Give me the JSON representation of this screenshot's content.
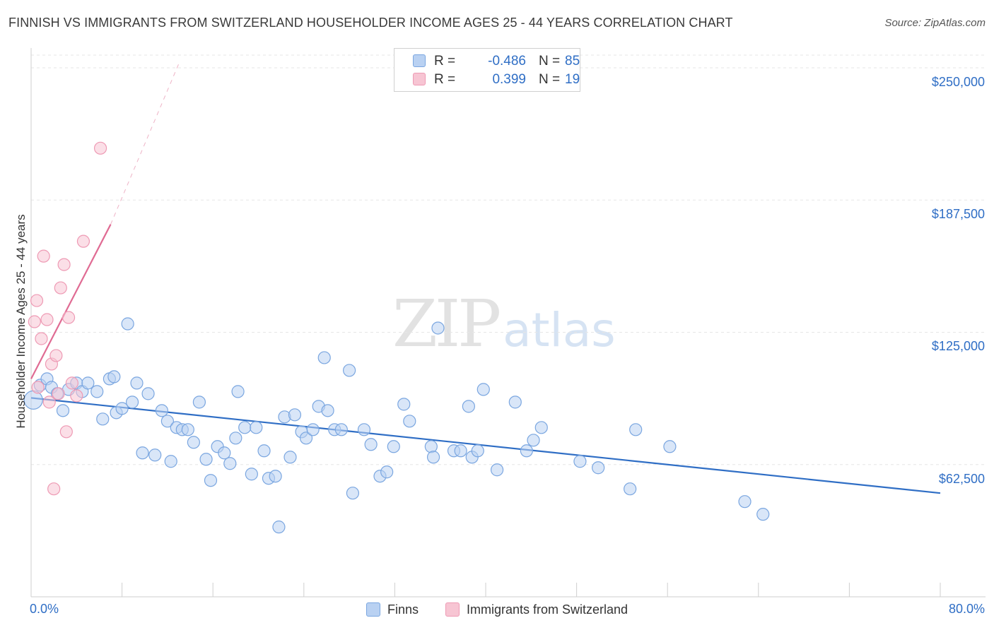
{
  "header": {
    "title": "FINNISH VS IMMIGRANTS FROM SWITZERLAND HOUSEHOLDER INCOME AGES 25 - 44 YEARS CORRELATION CHART",
    "source": "Source: ZipAtlas.com"
  },
  "watermark": {
    "zip": "ZIP",
    "atlas": "atlas"
  },
  "legend": {
    "series": [
      {
        "name": "Finns",
        "r_label": "R =",
        "r_value": "-0.486",
        "n_label": "N =",
        "n_value": "85"
      },
      {
        "name": "Immigrants from Switzerland",
        "r_label": "R =",
        "r_value": "0.399",
        "n_label": "N =",
        "n_value": "19"
      }
    ]
  },
  "colors": {
    "finns_fill": "#b9d1f2",
    "finns_stroke": "#7aa6e0",
    "finns_line": "#2f6ec5",
    "swiss_fill": "#f7c5d3",
    "swiss_stroke": "#ee9ab4",
    "swiss_line": "#e06b93",
    "grid": "#e6e6e6",
    "axis_text": "#2f6ec5"
  },
  "chart_data": {
    "type": "scatter",
    "title": "FINNISH VS IMMIGRANTS FROM SWITZERLAND HOUSEHOLDER INCOME AGES 25 - 44 YEARS CORRELATION CHART",
    "xlabel": "",
    "ylabel": "Householder Income Ages 25 - 44 years",
    "xlim": [
      0,
      80
    ],
    "ylim": [
      0,
      256000
    ],
    "x_tick_labels": [
      "0.0%",
      "80.0%"
    ],
    "y_ticks": [
      {
        "value": 62500,
        "label": "$62,500"
      },
      {
        "value": 125000,
        "label": "$125,000"
      },
      {
        "value": 187500,
        "label": "$187,500"
      },
      {
        "value": 250000,
        "label": "$250,000"
      }
    ],
    "grid": true,
    "legend_position": "top-center",
    "series": [
      {
        "name": "Finns",
        "trend": {
          "x": [
            0,
            80
          ],
          "y": [
            94000,
            49000
          ]
        },
        "points": [
          [
            0.2,
            93000
          ],
          [
            0.8,
            100000
          ],
          [
            1.4,
            103000
          ],
          [
            1.8,
            99000
          ],
          [
            2.3,
            96000
          ],
          [
            2.8,
            88000
          ],
          [
            3.3,
            98000
          ],
          [
            4.0,
            101000
          ],
          [
            4.5,
            97000
          ],
          [
            5.0,
            101000
          ],
          [
            5.8,
            97000
          ],
          [
            6.3,
            84000
          ],
          [
            6.9,
            103000
          ],
          [
            7.3,
            104000
          ],
          [
            7.5,
            87000
          ],
          [
            8.0,
            89000
          ],
          [
            8.5,
            129000
          ],
          [
            8.9,
            92000
          ],
          [
            9.3,
            101000
          ],
          [
            9.8,
            68000
          ],
          [
            10.3,
            96000
          ],
          [
            10.9,
            67000
          ],
          [
            11.5,
            88000
          ],
          [
            12.0,
            83000
          ],
          [
            12.3,
            64000
          ],
          [
            12.8,
            80000
          ],
          [
            13.3,
            79000
          ],
          [
            13.8,
            79000
          ],
          [
            14.3,
            73000
          ],
          [
            14.8,
            92000
          ],
          [
            15.4,
            65000
          ],
          [
            15.8,
            55000
          ],
          [
            16.4,
            71000
          ],
          [
            17.0,
            68000
          ],
          [
            17.5,
            63000
          ],
          [
            18.0,
            75000
          ],
          [
            18.2,
            97000
          ],
          [
            18.8,
            80000
          ],
          [
            19.4,
            58000
          ],
          [
            19.8,
            80000
          ],
          [
            20.5,
            69000
          ],
          [
            20.9,
            56000
          ],
          [
            21.5,
            57000
          ],
          [
            21.8,
            33000
          ],
          [
            22.3,
            85000
          ],
          [
            22.8,
            66000
          ],
          [
            23.2,
            86000
          ],
          [
            23.8,
            78000
          ],
          [
            24.2,
            75000
          ],
          [
            24.8,
            79000
          ],
          [
            25.3,
            90000
          ],
          [
            25.8,
            113000
          ],
          [
            26.1,
            88000
          ],
          [
            26.7,
            79000
          ],
          [
            27.3,
            79000
          ],
          [
            28.0,
            107000
          ],
          [
            28.3,
            49000
          ],
          [
            29.3,
            79000
          ],
          [
            29.9,
            72000
          ],
          [
            30.7,
            57000
          ],
          [
            31.3,
            59000
          ],
          [
            31.9,
            71000
          ],
          [
            32.8,
            91000
          ],
          [
            33.3,
            83000
          ],
          [
            35.2,
            71000
          ],
          [
            35.4,
            66000
          ],
          [
            35.8,
            127000
          ],
          [
            37.2,
            69000
          ],
          [
            37.8,
            69000
          ],
          [
            38.5,
            90000
          ],
          [
            38.8,
            66000
          ],
          [
            39.3,
            69000
          ],
          [
            39.8,
            98000
          ],
          [
            41.0,
            60000
          ],
          [
            42.6,
            92000
          ],
          [
            43.6,
            69000
          ],
          [
            44.2,
            74000
          ],
          [
            44.9,
            80000
          ],
          [
            48.3,
            64000
          ],
          [
            49.9,
            61000
          ],
          [
            52.7,
            51000
          ],
          [
            53.2,
            79000
          ],
          [
            56.2,
            71000
          ],
          [
            62.8,
            45000
          ],
          [
            64.4,
            39000
          ]
        ]
      },
      {
        "name": "Immigrants from Switzerland",
        "trend": {
          "x": [
            0,
            7
          ],
          "y": [
            103000,
            176000
          ]
        },
        "trend_extension": {
          "x": [
            7,
            13
          ],
          "y": [
            176000,
            252000
          ]
        },
        "points": [
          [
            0.3,
            130000
          ],
          [
            0.5,
            140000
          ],
          [
            0.6,
            99000
          ],
          [
            0.9,
            122000
          ],
          [
            1.1,
            161000
          ],
          [
            1.4,
            131000
          ],
          [
            1.6,
            92000
          ],
          [
            1.8,
            110000
          ],
          [
            2.0,
            51000
          ],
          [
            2.2,
            114000
          ],
          [
            2.4,
            96000
          ],
          [
            2.6,
            146000
          ],
          [
            2.9,
            157000
          ],
          [
            3.1,
            78000
          ],
          [
            3.3,
            132000
          ],
          [
            3.6,
            101000
          ],
          [
            4.0,
            95000
          ],
          [
            4.6,
            168000
          ],
          [
            6.1,
            212000
          ]
        ]
      }
    ]
  }
}
